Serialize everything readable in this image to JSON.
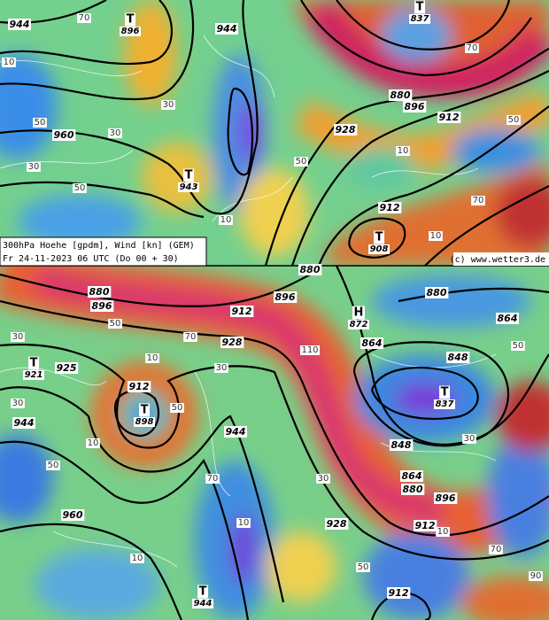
{
  "caption": {
    "line1": "300hPa Hoehe [gpdm], Wind [kn] (GEM)",
    "line2": "Fr 24-11-2023 06 UTC (Do 00 + 30)"
  },
  "credit": "(c) www.wetter3.de",
  "top_map": {
    "height_labels": [
      "944",
      "944",
      "960",
      "928",
      "880",
      "896",
      "912",
      "912"
    ],
    "wind_labels": [
      "70",
      "30",
      "50",
      "10",
      "30",
      "50",
      "10",
      "70",
      "50",
      "10",
      "30",
      "50",
      "70",
      "10"
    ],
    "centers": [
      {
        "symbol": "T",
        "value": "896"
      },
      {
        "symbol": "T",
        "value": "837"
      },
      {
        "symbol": "T",
        "value": "943"
      },
      {
        "symbol": "T",
        "value": "908"
      }
    ]
  },
  "bottom_map": {
    "height_labels": [
      "880",
      "896",
      "912",
      "896",
      "880",
      "928",
      "925",
      "912",
      "944",
      "944",
      "960",
      "928",
      "912",
      "912",
      "864",
      "848",
      "848",
      "864",
      "880",
      "896",
      "880",
      "864"
    ],
    "wind_labels": [
      "30",
      "50",
      "10",
      "30",
      "50",
      "70",
      "110",
      "30",
      "10",
      "50",
      "70",
      "10",
      "30",
      "50",
      "70",
      "10",
      "30",
      "50",
      "90",
      "10"
    ],
    "centers": [
      {
        "symbol": "T",
        "value": "921"
      },
      {
        "symbol": "T",
        "value": "898"
      },
      {
        "symbol": "H",
        "value": "872"
      },
      {
        "symbol": "T",
        "value": "837"
      },
      {
        "symbol": "T",
        "value": "944"
      }
    ]
  }
}
